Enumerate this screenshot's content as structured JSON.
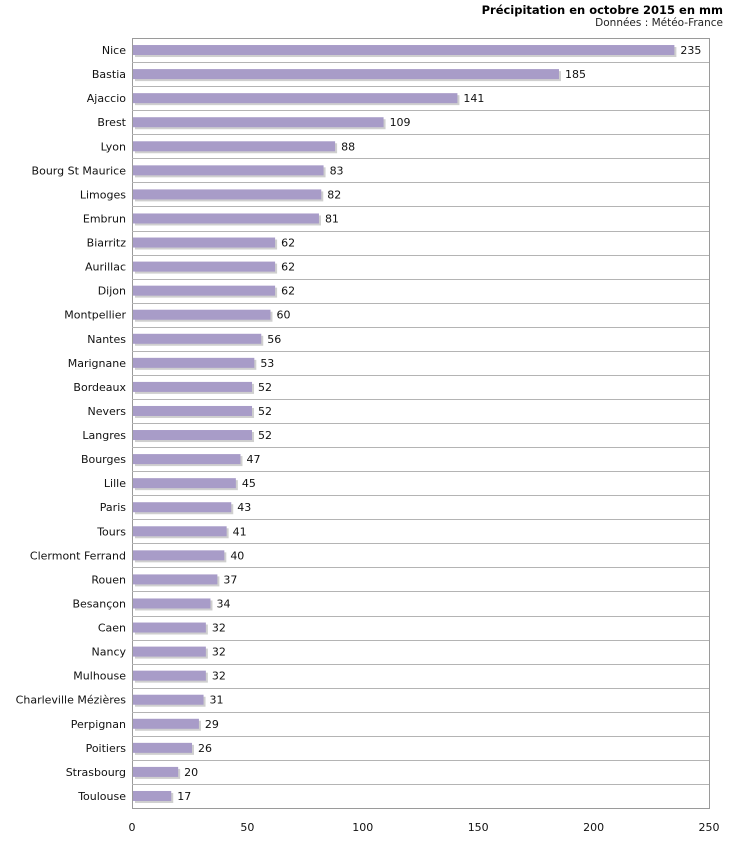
{
  "chart_data": {
    "type": "bar",
    "orientation": "horizontal",
    "title": "Précipitation en octobre 2015 en mm",
    "subtitle": "Données : Météo-France",
    "xlabel": "",
    "ylabel": "",
    "xlim": [
      0,
      250
    ],
    "xticks": [
      0,
      50,
      100,
      150,
      200,
      250
    ],
    "grid": true,
    "bar_color": "#a89cc8",
    "shadow_color": "#cfcfcf",
    "categories": [
      "Nice",
      "Bastia",
      "Ajaccio",
      "Brest",
      "Lyon",
      "Bourg St Maurice",
      "Limoges",
      "Embrun",
      "Biarritz",
      "Aurillac",
      "Dijon",
      "Montpellier",
      "Nantes",
      "Marignane",
      "Bordeaux",
      "Nevers",
      "Langres",
      "Bourges",
      "Lille",
      "Paris",
      "Tours",
      "Clermont Ferrand",
      "Rouen",
      "Besançon",
      "Caen",
      "Nancy",
      "Mulhouse",
      "Charleville Mézières",
      "Perpignan",
      "Poitiers",
      "Strasbourg",
      "Toulouse"
    ],
    "values": [
      235,
      185,
      141,
      109,
      88,
      83,
      82,
      81,
      62,
      62,
      62,
      60,
      56,
      53,
      52,
      52,
      52,
      47,
      45,
      43,
      41,
      40,
      37,
      34,
      32,
      32,
      32,
      31,
      29,
      26,
      20,
      17
    ]
  }
}
